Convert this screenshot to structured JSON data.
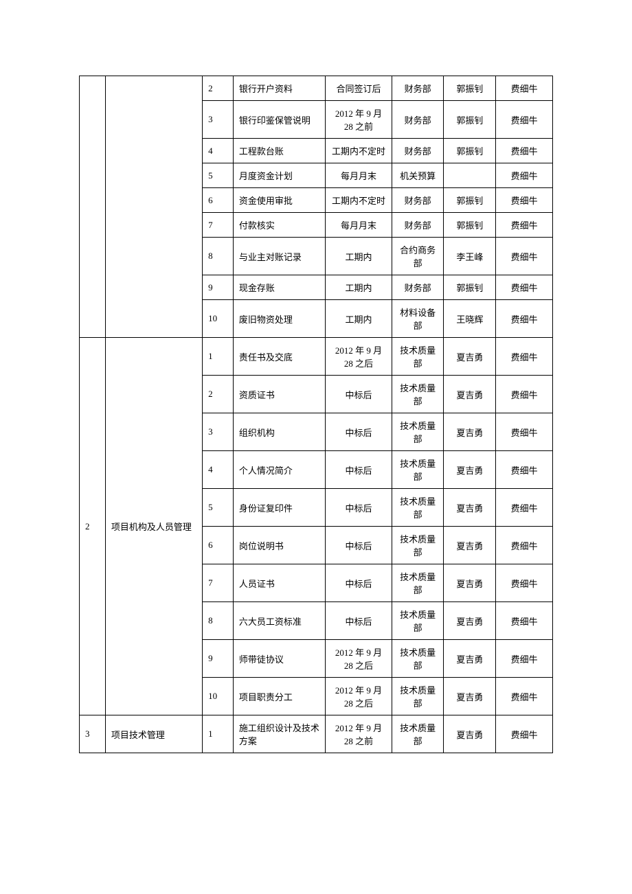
{
  "table": {
    "columns": [
      "section",
      "category",
      "num",
      "item",
      "time",
      "dept",
      "person1",
      "person2"
    ],
    "border_color": "#000000",
    "font_family": "SimSun",
    "font_size": 13,
    "background_color": "#ffffff",
    "text_color": "#000000",
    "col_widths_pct": [
      5.5,
      20.5,
      6.5,
      19.5,
      14,
      11,
      11,
      12
    ],
    "col_align": [
      "left",
      "left",
      "left",
      "left",
      "center",
      "center",
      "center",
      "center"
    ],
    "groups": [
      {
        "section": "",
        "category": "",
        "rows": [
          {
            "num": "2",
            "item": "银行开户资料",
            "time": "合同签订后",
            "dept": "财务部",
            "person1": "郭振钊",
            "person2": "费细牛"
          },
          {
            "num": "3",
            "item": "银行印鉴保管说明",
            "time": "2012 年 9 月 28 之前",
            "dept": "财务部",
            "person1": "郭振钊",
            "person2": "费细牛"
          },
          {
            "num": "4",
            "item": "工程款台账",
            "time": "工期内不定时",
            "dept": "财务部",
            "person1": "郭振钊",
            "person2": "费细牛"
          },
          {
            "num": "5",
            "item": "月度资金计划",
            "time": "每月月末",
            "dept": "机关预算",
            "person1": "",
            "person2": "费细牛"
          },
          {
            "num": "6",
            "item": "资金使用审批",
            "time": "工期内不定时",
            "dept": "财务部",
            "person1": "郭振钊",
            "person2": "费细牛"
          },
          {
            "num": "7",
            "item": "付款核实",
            "time": "每月月末",
            "dept": "财务部",
            "person1": "郭振钊",
            "person2": "费细牛"
          },
          {
            "num": "8",
            "item": "与业主对账记录",
            "time": "工期内",
            "dept": "合约商务部",
            "person1": "李王峰",
            "person2": "费细牛"
          },
          {
            "num": "9",
            "item": "现金存账",
            "time": "工期内",
            "dept": "财务部",
            "person1": "郭振钊",
            "person2": "费细牛"
          },
          {
            "num": "10",
            "item": "废旧物资处理",
            "time": "工期内",
            "dept": "材料设备部",
            "person1": "王晓辉",
            "person2": "费细牛"
          }
        ]
      },
      {
        "section": "2",
        "category": "项目机构及人员管理",
        "rows": [
          {
            "num": "1",
            "item": "责任书及交底",
            "time": "2012 年 9 月 28 之后",
            "dept": "技术质量部",
            "person1": "夏吉勇",
            "person2": "费细牛"
          },
          {
            "num": "2",
            "item": "资质证书",
            "time": "中标后",
            "dept": "技术质量部",
            "person1": "夏吉勇",
            "person2": "费细牛"
          },
          {
            "num": "3",
            "item": "组织机构",
            "time": "中标后",
            "dept": "技术质量部",
            "person1": "夏吉勇",
            "person2": "费细牛"
          },
          {
            "num": "4",
            "item": "个人情况简介",
            "time": "中标后",
            "dept": "技术质量部",
            "person1": "夏吉勇",
            "person2": "费细牛"
          },
          {
            "num": "5",
            "item": "身份证复印件",
            "time": "中标后",
            "dept": "技术质量部",
            "person1": "夏吉勇",
            "person2": "费细牛"
          },
          {
            "num": "6",
            "item": "岗位说明书",
            "time": "中标后",
            "dept": "技术质量部",
            "person1": "夏吉勇",
            "person2": "费细牛"
          },
          {
            "num": "7",
            "item": "人员证书",
            "time": "中标后",
            "dept": "技术质量部",
            "person1": "夏吉勇",
            "person2": "费细牛"
          },
          {
            "num": "8",
            "item": "六大员工资标准",
            "time": "中标后",
            "dept": "技术质量部",
            "person1": "夏吉勇",
            "person2": "费细牛"
          },
          {
            "num": "9",
            "item": "师带徒协议",
            "time": "2012 年 9 月 28 之后",
            "dept": "技术质量部",
            "person1": "夏吉勇",
            "person2": "费细牛"
          },
          {
            "num": "10",
            "item": "项目职责分工",
            "time": "2012 年 9 月 28 之后",
            "dept": "技术质量部",
            "person1": "夏吉勇",
            "person2": "费细牛"
          }
        ]
      },
      {
        "section": "3",
        "category": "项目技术管理",
        "rows": [
          {
            "num": "1",
            "item": "施工组织设计及技术方案",
            "time": "2012 年 9 月 28 之前",
            "dept": "技术质量部",
            "person1": "夏吉勇",
            "person2": "费细牛"
          }
        ]
      }
    ]
  }
}
